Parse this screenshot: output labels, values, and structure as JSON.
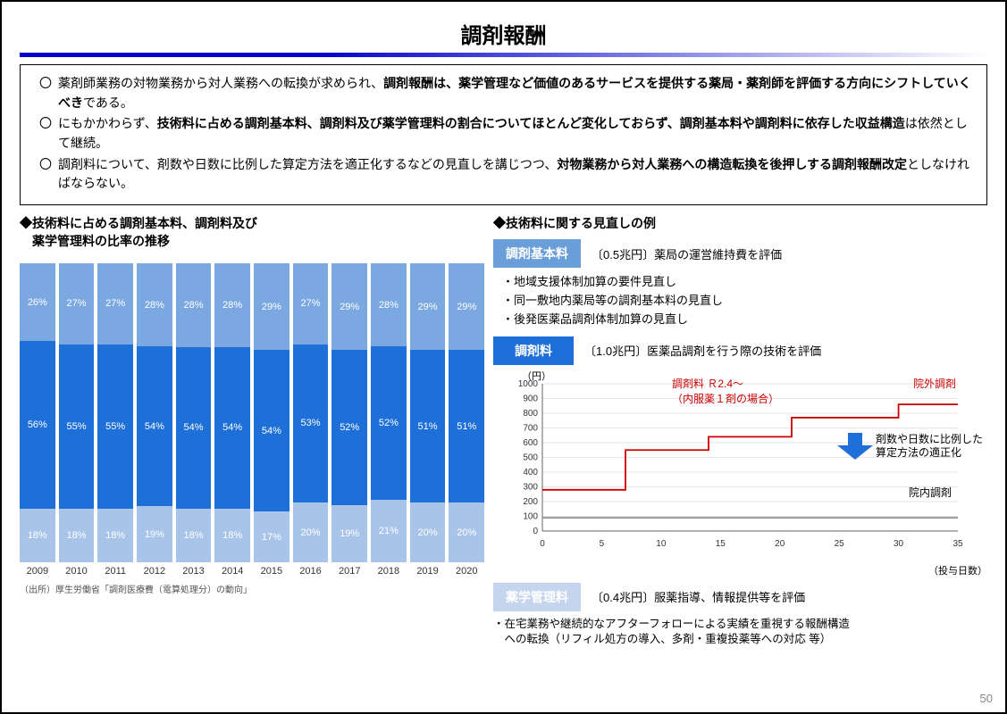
{
  "title": "調剤報酬",
  "bullets": [
    {
      "pre": "薬剤師業務の対物業務から対人業務への転換が求められ、",
      "bold": "調剤報酬は、薬学管理など価値のあるサービスを提供する薬局・薬剤師を評価する方向にシフトしていくべき",
      "post": "である。"
    },
    {
      "pre": "にもかかわらず、",
      "bold": "技術料に占める調剤基本料、調剤料及び薬学管理料の割合についてほとんど変化しておらず、調剤基本料や調剤料に依存した収益構造",
      "post": "は依然として継続。"
    },
    {
      "pre": "調剤料について、剤数や日数に比例した算定方法を適正化するなどの見直しを講じつつ、",
      "bold": "対物業務から対人業務への構造転換を後押しする調剤報酬改定",
      "post": "としなければならない。"
    }
  ],
  "left": {
    "subhead": "◆技術料に占める調剤基本料、調剤料及び\n　薬学管理料の比率の推移",
    "years": [
      "2009",
      "2010",
      "2011",
      "2012",
      "2013",
      "2014",
      "2015",
      "2016",
      "2017",
      "2018",
      "2019",
      "2020"
    ],
    "top_pct": [
      26,
      27,
      27,
      28,
      28,
      28,
      29,
      27,
      29,
      28,
      29,
      29
    ],
    "mid_pct": [
      56,
      55,
      55,
      54,
      54,
      54,
      54,
      53,
      52,
      52,
      51,
      51
    ],
    "bottom_pct": [
      18,
      18,
      18,
      19,
      18,
      18,
      17,
      20,
      19,
      21,
      20,
      20
    ],
    "colors": {
      "bottom": "#a8c4e8",
      "mid": "#1f6fd8",
      "top": "#7ba8e0",
      "label": "#ffffff"
    },
    "source": "（出所）厚生労働省「調剤医療費（電算処理分）の動向」"
  },
  "right": {
    "subhead": "◆技術料に関する見直しの例",
    "tags": [
      {
        "label": "調剤基本料",
        "color": "#6a9ed8",
        "desc": "〔0.5兆円〕薬局の運営維持費を評価"
      },
      {
        "label": "調剤料",
        "color": "#1f6fd8",
        "desc": "〔1.0兆円〕医薬品調剤を行う際の技術を評価"
      },
      {
        "label": "薬学管理料",
        "color": "#c5d5ee",
        "desc": "〔0.4兆円〕服薬指導、情報提供等を評価"
      }
    ],
    "sub_bullets": [
      "・地域支援体制加算の要件見直し",
      "・同一敷地内薬局等の調剤基本料の見直し",
      "・後発医薬品調剤体制加算の見直し"
    ],
    "line_chart": {
      "y_label": "（円）",
      "y_ticks": [
        0,
        100,
        200,
        300,
        400,
        500,
        600,
        700,
        800,
        900,
        1000
      ],
      "x_ticks": [
        0,
        5,
        10,
        15,
        20,
        25,
        30,
        35
      ],
      "x_label": "（投与日数）",
      "red_title": "調剤料 Ｒ2.4～",
      "red_sub": "（内服薬１剤の場合）",
      "red_label": "院外調剤",
      "gray_label": "院内調剤",
      "annot": "剤数や日数に比例した\n算定方法の適正化",
      "red_steps": [
        [
          0,
          280
        ],
        [
          7,
          280
        ],
        [
          7,
          550
        ],
        [
          14,
          550
        ],
        [
          14,
          640
        ],
        [
          21,
          640
        ],
        [
          21,
          770
        ],
        [
          30,
          770
        ],
        [
          30,
          860
        ],
        [
          35,
          860
        ]
      ],
      "gray_steps": [
        [
          0,
          90
        ],
        [
          35,
          90
        ]
      ],
      "colors": {
        "red": "#cc0000",
        "gray": "#999999",
        "grid": "#cccccc",
        "axis": "#666666"
      }
    },
    "footer": "・在宅業務や継続的なアフターフォローによる実績を重視する報酬構造\n　への転換（リフィル処方の導入、多剤・重複投薬等への対応 等）"
  },
  "page_num": "50"
}
